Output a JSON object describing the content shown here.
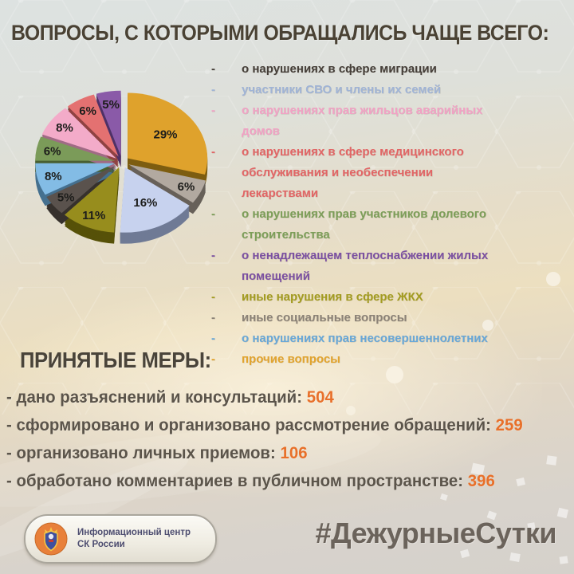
{
  "title": "ВОПРОСЫ, С КОТОРЫМИ ОБРАЩАЛИСЬ ЧАЩЕ ВСЕГО:",
  "chart_data": {
    "type": "pie",
    "style": "3d-exploded",
    "label_format": "percent",
    "start_angle_deg": 0,
    "direction": "clockwise",
    "slices": [
      {
        "label": "прочие вопросы",
        "value": 29,
        "color": "#dfa22c",
        "side_color": "#7d5d10"
      },
      {
        "label": "иные социальные вопросы",
        "value": 6,
        "color": "#b2a9a0",
        "side_color": "#676059"
      },
      {
        "label": "участники СВО и члены их семей",
        "value": 16,
        "color": "#c7d2ee",
        "side_color": "#6f7a95"
      },
      {
        "label": "иные нарушения в сфере ЖКХ",
        "value": 11,
        "color": "#978d1d",
        "side_color": "#565108"
      },
      {
        "label": "о нарушениях в сфере миграции",
        "value": 5,
        "color": "#5a524d",
        "side_color": "#36312d"
      },
      {
        "label": "о нарушениях прав несовершеннолетних",
        "value": 8,
        "color": "#83bce5",
        "side_color": "#45708f"
      },
      {
        "label": "о нарушениях прав участников долевого строительства",
        "value": 6,
        "color": "#7b9b59",
        "side_color": "#485f31"
      },
      {
        "label": "о нарушениях прав жильцов аварийных домов",
        "value": 8,
        "color": "#f3abc9",
        "side_color": "#a06b85"
      },
      {
        "label": "о нарушениях в сфере медицинского обслуживания и необеспечении лекарствами",
        "value": 6,
        "color": "#e47171",
        "side_color": "#8f4242"
      },
      {
        "label": "о ненадлежащем теплоснабжении жилых помещений",
        "value": 5,
        "color": "#8a5aa8",
        "side_color": "#4f3166"
      }
    ]
  },
  "legend": {
    "bullet": "-",
    "items": [
      {
        "label": "о нарушениях в сфере миграции",
        "color": "#453e38"
      },
      {
        "label": "участники СВО и члены их семей",
        "color": "#a0b4d6"
      },
      {
        "label": "о нарушениях прав жильцов аварийных домов",
        "color": "#f1a2c4"
      },
      {
        "label": "о нарушениях в сфере медицинского обслуживания и необеспечении лекарствами",
        "color": "#e26565"
      },
      {
        "label": "о нарушениях прав участников долевого строительства",
        "color": "#7c9e58"
      },
      {
        "label": "о ненадлежащем теплоснабжении жилых помещений",
        "color": "#7b50a2"
      },
      {
        "label": "иные нарушения в сфере ЖКХ",
        "color": "#a39c20"
      },
      {
        "label": "иные социальные вопросы",
        "color": "#8b8277"
      },
      {
        "label": "о нарушениях прав несовершеннолетних",
        "color": "#67a7d8"
      },
      {
        "label": "прочие вопросы",
        "color": "#e2a42e"
      }
    ]
  },
  "measures": {
    "heading": "ПРИНЯТЫЕ МЕРЫ:",
    "bullet": "-",
    "value_color": "#e8702a",
    "items": [
      {
        "text": "дано разъяснений и консультаций:",
        "value": "504"
      },
      {
        "text": "сформировано и организовано рассмотрение обращений:",
        "value": "259"
      },
      {
        "text": "организовано личных приемов:",
        "value": "106"
      },
      {
        "text": "обработано комментариев в публичном пространстве:",
        "value": "396"
      }
    ]
  },
  "footer": {
    "logo": {
      "line1": "Информационный центр",
      "line2": "СК России"
    },
    "hashtag": "#ДежурныеСутки"
  }
}
